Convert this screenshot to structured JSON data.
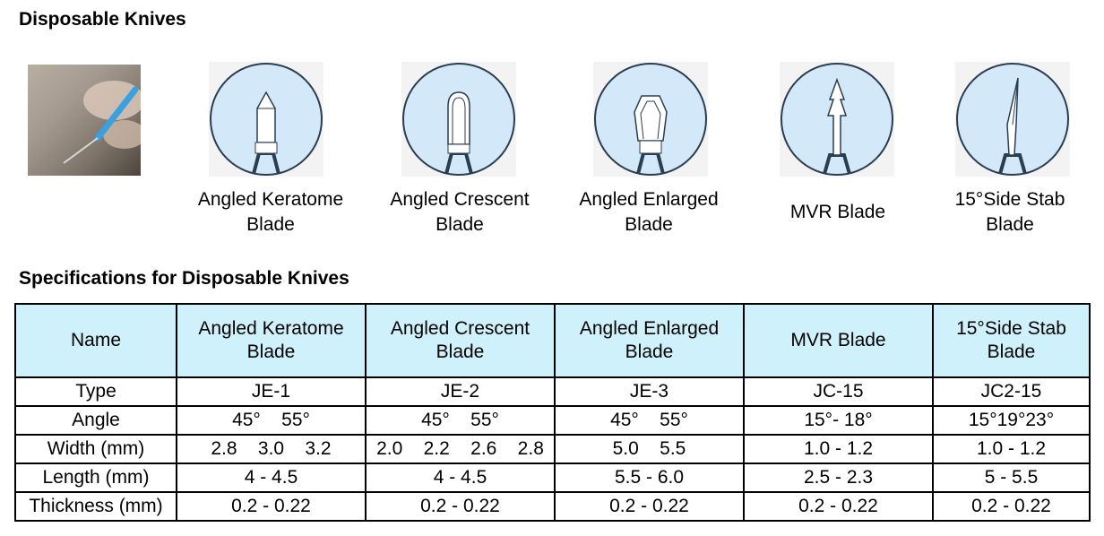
{
  "title": "Disposable Knives",
  "spec_title": "Specifications for Disposable Knives",
  "blades": [
    {
      "name": "Angled Keratome\nBlade",
      "icon": "keratome-blade-icon"
    },
    {
      "name": "Angled Crescent\nBlade",
      "icon": "crescent-blade-icon"
    },
    {
      "name": "Angled Enlarged\nBlade",
      "icon": "enlarged-blade-icon"
    },
    {
      "name": "MVR Blade",
      "icon": "mvr-blade-icon"
    },
    {
      "name": "15°Side Stab\nBlade",
      "icon": "side-stab-blade-icon"
    }
  ],
  "table": {
    "header": [
      "Name",
      "Angled Keratome\nBlade",
      "Angled Crescent\nBlade",
      "Angled Enlarged\nBlade",
      "MVR Blade",
      "15°Side Stab\nBlade"
    ],
    "rows": [
      [
        "Type",
        "JE-1",
        "JE-2",
        "JE-3",
        "JC-15",
        "JC2-15"
      ],
      [
        "Angle",
        "45°    55°",
        "45°    55°",
        "45°    55°",
        "15°- 18°",
        "15°19°23°"
      ],
      [
        "Width (mm)",
        "2.8    3.0    3.2",
        "2.0    2.2    2.6    2.8",
        "5.0    5.5",
        "1.0 - 1.2",
        "1.0 - 1.2"
      ],
      [
        "Length (mm)",
        "4 - 4.5",
        "4 - 4.5",
        "5.5 - 6.0",
        "2.5 - 2.3",
        "5 - 5.5"
      ],
      [
        "Thickness (mm)",
        "0.2 - 0.22",
        "0.2 - 0.22",
        "0.2 - 0.22",
        "0.2 - 0.22",
        "0.2 - 0.22"
      ]
    ]
  },
  "colors": {
    "header_bg": "#cff1fb",
    "thumb_circle": "#d3e8f8",
    "thumb_border": "#2b3d50"
  }
}
